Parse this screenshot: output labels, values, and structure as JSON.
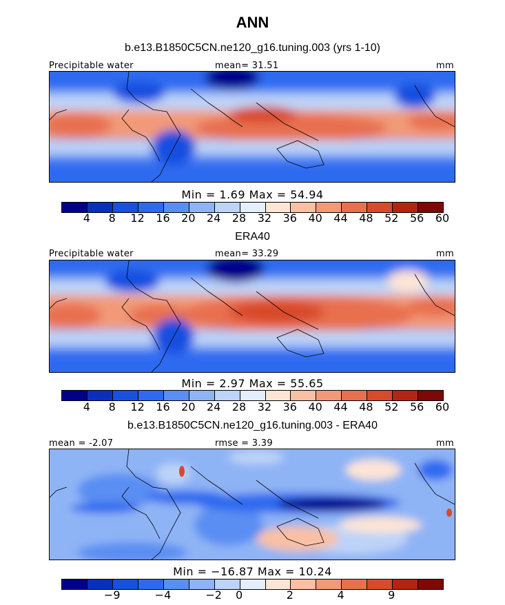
{
  "title": "ANN",
  "chart_data": [
    {
      "type": "heatmap",
      "title": "b.e13.B1850C5CN.ne120_g16.tuning.003 (yrs 1-10)",
      "left_label": "Precipitable water",
      "center_label": "mean=  31.51",
      "right_label": "mm",
      "stats_label": "Min =   1.69 Max =  54.94",
      "min": 1.69,
      "max": 54.94,
      "mean": 31.51,
      "units": "mm",
      "colorbar_ticks": [
        "4",
        "8",
        "12",
        "16",
        "20",
        "24",
        "28",
        "32",
        "36",
        "40",
        "44",
        "48",
        "52",
        "56",
        "60"
      ],
      "colorbar_colors": [
        "#00008b",
        "#0a2fbf",
        "#1850e0",
        "#2e6af0",
        "#5a8ef2",
        "#8fb4f5",
        "#bdd3f8",
        "#e4eefc",
        "#fde5d6",
        "#f9c0a4",
        "#f29a78",
        "#e8704f",
        "#d84a2b",
        "#b42412",
        "#7e0805"
      ]
    },
    {
      "type": "heatmap",
      "title": "ERA40",
      "left_label": "Precipitable water",
      "center_label": "mean=  33.29",
      "right_label": "mm",
      "stats_label": "Min =   2.97 Max =  55.65",
      "min": 2.97,
      "max": 55.65,
      "mean": 33.29,
      "units": "mm",
      "colorbar_ticks": [
        "4",
        "8",
        "12",
        "16",
        "20",
        "24",
        "28",
        "32",
        "36",
        "40",
        "44",
        "48",
        "52",
        "56",
        "60"
      ],
      "colorbar_colors": [
        "#00008b",
        "#0a2fbf",
        "#1850e0",
        "#2e6af0",
        "#5a8ef2",
        "#8fb4f5",
        "#bdd3f8",
        "#e4eefc",
        "#fde5d6",
        "#f9c0a4",
        "#f29a78",
        "#e8704f",
        "#d84a2b",
        "#b42412",
        "#7e0805"
      ]
    },
    {
      "type": "heatmap",
      "title": "b.e13.B1850C5CN.ne120_g16.tuning.003 - ERA40",
      "left_label": "mean =  -2.07",
      "center_label": "rmse =   3.39",
      "right_label": "mm",
      "stats_label": "Min = −16.87 Max =  10.24",
      "min": -16.87,
      "max": 10.24,
      "mean": -2.07,
      "rmse": 3.39,
      "units": "mm",
      "colorbar_ticks": [
        "−9",
        "−4",
        "−2",
        "0",
        "2",
        "4",
        "9"
      ],
      "colorbar_colors": [
        "#00008b",
        "#0a2fbf",
        "#1850e0",
        "#2e6af0",
        "#5a8ef2",
        "#8fb4f5",
        "#bdd3f8",
        "#e4eefc",
        "#fde5d6",
        "#f9c0a4",
        "#f29a78",
        "#e8704f",
        "#d84a2b",
        "#b42412",
        "#7e0805"
      ]
    }
  ]
}
